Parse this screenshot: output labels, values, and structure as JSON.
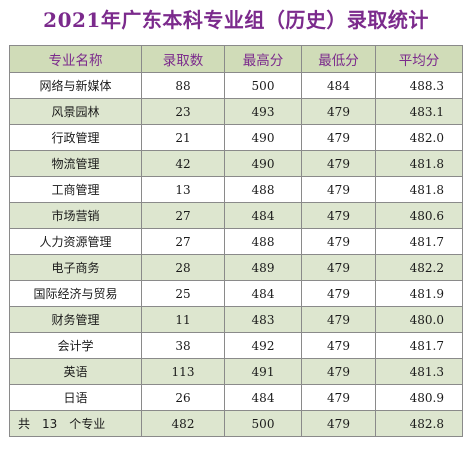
{
  "title": "2021年广东本科专业组（历史）录取统计",
  "headers": [
    "专业名称",
    "录取数",
    "最高分",
    "最低分",
    "平均分"
  ],
  "rows": [
    {
      "name": "网络与新媒体",
      "count": "88",
      "max": "500",
      "min": "484",
      "avg": "488.3"
    },
    {
      "name": "风景园林",
      "count": "23",
      "max": "493",
      "min": "479",
      "avg": "483.1"
    },
    {
      "name": "行政管理",
      "count": "21",
      "max": "490",
      "min": "479",
      "avg": "482.0"
    },
    {
      "name": "物流管理",
      "count": "42",
      "max": "490",
      "min": "479",
      "avg": "481.8"
    },
    {
      "name": "工商管理",
      "count": "13",
      "max": "488",
      "min": "479",
      "avg": "481.8"
    },
    {
      "name": "市场营销",
      "count": "27",
      "max": "484",
      "min": "479",
      "avg": "480.6"
    },
    {
      "name": "人力资源管理",
      "count": "27",
      "max": "488",
      "min": "479",
      "avg": "481.7"
    },
    {
      "name": "电子商务",
      "count": "28",
      "max": "489",
      "min": "479",
      "avg": "482.2"
    },
    {
      "name": "国际经济与贸易",
      "count": "25",
      "max": "484",
      "min": "479",
      "avg": "481.9"
    },
    {
      "name": "财务管理",
      "count": "11",
      "max": "483",
      "min": "479",
      "avg": "480.0"
    },
    {
      "name": "会计学",
      "count": "38",
      "max": "492",
      "min": "479",
      "avg": "481.7"
    },
    {
      "name": "英语",
      "count": "113",
      "max": "491",
      "min": "479",
      "avg": "481.3"
    },
    {
      "name": "日语",
      "count": "26",
      "max": "484",
      "min": "479",
      "avg": "480.9"
    }
  ],
  "total": {
    "name": "共　13　个专业",
    "count": "482",
    "max": "500",
    "min": "479",
    "avg": "482.8"
  },
  "colors": {
    "title": "#7b2a8c",
    "header_bg": "#d0dcb8",
    "shaded_row_bg": "#dde6cf",
    "border": "#8a8a8a"
  }
}
